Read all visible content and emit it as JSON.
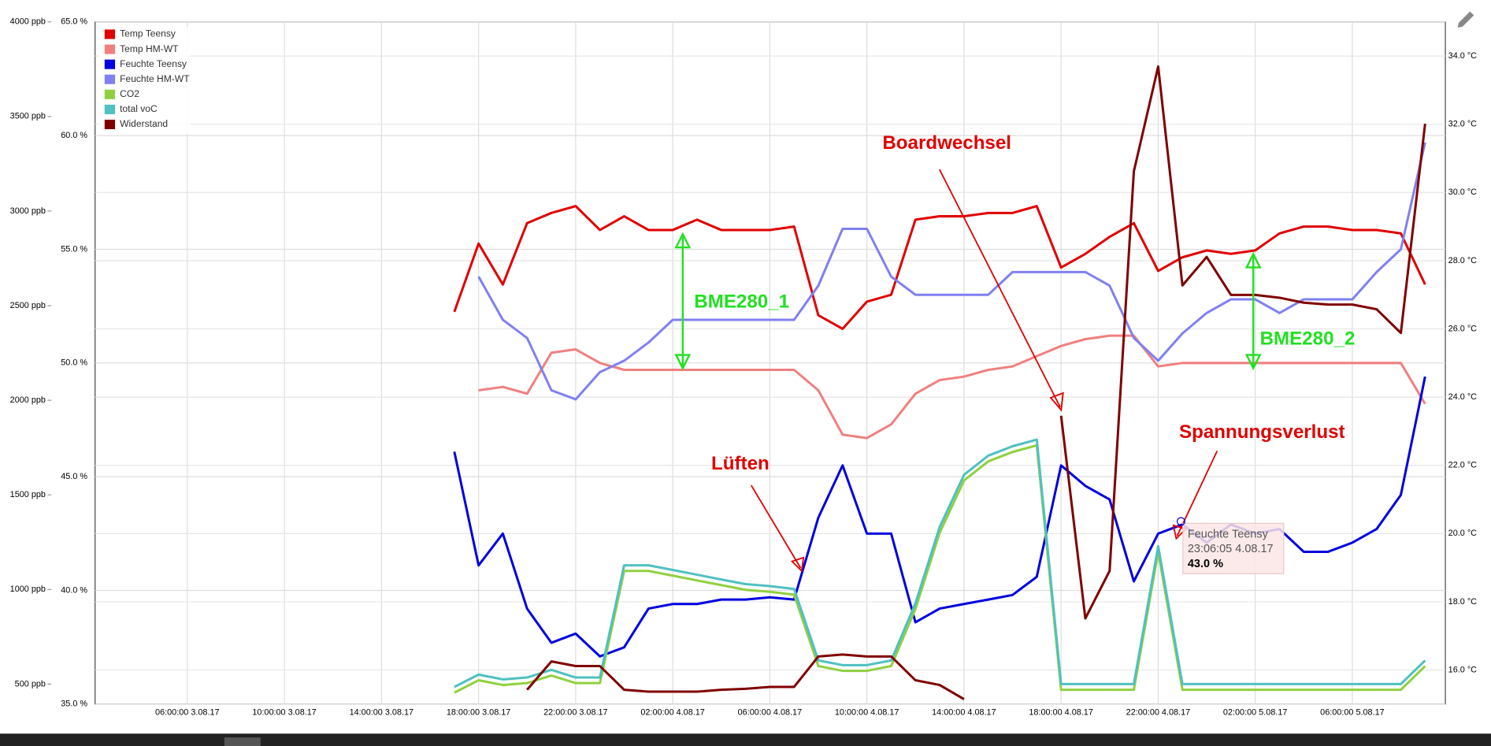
{
  "chart_data": {
    "type": "line",
    "x": [
      "17:00:00 3.08.17",
      "18:00:00 3.08.17",
      "19:00:00 3.08.17",
      "20:00:00 3.08.17",
      "21:00:00 3.08.17",
      "22:00:00 3.08.17",
      "23:00:00 3.08.17",
      "00:00:00 4.08.17",
      "01:00:00 4.08.17",
      "02:00:00 4.08.17",
      "03:00:00 4.08.17",
      "04:00:00 4.08.17",
      "05:00:00 4.08.17",
      "06:00:00 4.08.17",
      "07:00:00 4.08.17",
      "08:00:00 4.08.17",
      "09:00:00 4.08.17",
      "10:00:00 4.08.17",
      "11:00:00 4.08.17",
      "12:00:00 4.08.17",
      "13:00:00 4.08.17",
      "14:00:00 4.08.17",
      "15:00:00 4.08.17",
      "16:00:00 4.08.17",
      "17:00:00 4.08.17",
      "18:00:00 4.08.17",
      "19:00:00 4.08.17",
      "20:00:00 4.08.17",
      "21:00:00 4.08.17",
      "22:00:00 4.08.17",
      "23:00:00 4.08.17",
      "00:00:00 5.08.17",
      "01:00:00 5.08.17",
      "02:00:00 5.08.17",
      "03:00:00 5.08.17",
      "04:00:00 5.08.17",
      "05:00:00 5.08.17",
      "06:00:00 5.08.17",
      "07:00:00 5.08.17",
      "08:00:00 5.08.17",
      "09:00:00 5.08.17"
    ],
    "xlim": [
      "02:12:00 3.08.17",
      "09:50:00 5.08.17"
    ],
    "xticks": [
      "06:00:00 3.08.17",
      "10:00:00 3.08.17",
      "14:00:00 3.08.17",
      "18:00:00 3.08.17",
      "22:00:00 3.08.17",
      "02:00:00 4.08.17",
      "06:00:00 4.08.17",
      "10:00:00 4.08.17",
      "14:00:00 4.08.17",
      "18:00:00 4.08.17",
      "22:00:00 4.08.17",
      "02:00:00 5.08.17",
      "06:00:00 5.08.17"
    ],
    "ylim": [
      394,
      4000
    ],
    "yticks": [
      {
        "value": 500,
        "label": "500 ppb"
      },
      {
        "value": 1000,
        "label": "1000 ppb"
      },
      {
        "value": 1500,
        "label": "1500 ppb"
      },
      {
        "value": 2000,
        "label": "2000 ppb"
      },
      {
        "value": 2500,
        "label": "2500 ppb"
      },
      {
        "value": 3000,
        "label": "3000 ppb"
      },
      {
        "value": 3500,
        "label": "3500 ppb"
      },
      {
        "value": 4000,
        "label": "4000 ppb"
      }
    ],
    "y3lim": [
      35,
      65
    ],
    "y3ticks": [
      {
        "value": 35,
        "label": "35.0 %"
      },
      {
        "value": 40,
        "label": "40.0 %"
      },
      {
        "value": 45,
        "label": "45.0 %"
      },
      {
        "value": 50,
        "label": "50.0 %"
      },
      {
        "value": 55,
        "label": "55.0 %"
      },
      {
        "value": 60,
        "label": "60.0 %"
      },
      {
        "value": 65,
        "label": "65.0 %"
      }
    ],
    "y2lim": [
      15,
      35
    ],
    "y2ticks": [
      {
        "value": 16,
        "label": "16.0 °C"
      },
      {
        "value": 18,
        "label": "18.0 °C"
      },
      {
        "value": 20,
        "label": "20.0 °C"
      },
      {
        "value": 22,
        "label": "22.0 °C"
      },
      {
        "value": 24,
        "label": "24.0 °C"
      },
      {
        "value": 26,
        "label": "26.0 °C"
      },
      {
        "value": 28,
        "label": "28.0 °C"
      },
      {
        "value": 30,
        "label": "30.0 °C"
      },
      {
        "value": 32,
        "label": "32.0 °C"
      },
      {
        "value": 34,
        "label": "34.0 °C"
      }
    ],
    "grid": true,
    "legend": "top-left",
    "series": [
      {
        "name": "Temp Teensy",
        "color": "#e00000",
        "axis": "y2",
        "values": [
          26.5,
          28.5,
          27.3,
          29.1,
          29.4,
          29.6,
          28.9,
          29.3,
          28.9,
          28.9,
          29.2,
          28.9,
          28.9,
          28.9,
          29.0,
          26.4,
          26.0,
          26.8,
          27.0,
          29.2,
          29.3,
          29.3,
          29.4,
          29.4,
          29.6,
          27.8,
          28.2,
          28.7,
          29.1,
          27.7,
          28.1,
          28.3,
          28.2,
          28.3,
          28.8,
          29.0,
          29.0,
          28.9,
          28.9,
          28.8,
          27.3
        ]
      },
      {
        "name": "Temp HM-WT",
        "color": "#f08080",
        "axis": "y2",
        "values": [
          null,
          24.2,
          24.3,
          24.1,
          25.3,
          25.4,
          25.0,
          24.8,
          24.8,
          24.8,
          24.8,
          24.8,
          24.8,
          24.8,
          24.8,
          24.2,
          22.9,
          22.8,
          23.2,
          24.1,
          24.5,
          24.6,
          24.8,
          24.9,
          25.2,
          25.5,
          25.7,
          25.8,
          25.8,
          24.9,
          25.0,
          25.0,
          25.0,
          25.0,
          25.0,
          25.0,
          25.0,
          25.0,
          25.0,
          25.0,
          23.8
        ]
      },
      {
        "name": "Feuchte Teensy",
        "color": "#0000e0",
        "axis": "y3",
        "values": [
          46.1,
          41.1,
          42.5,
          39.2,
          37.7,
          38.1,
          37.1,
          37.5,
          39.2,
          39.4,
          39.4,
          39.6,
          39.6,
          39.7,
          39.6,
          43.2,
          45.5,
          42.5,
          42.5,
          38.6,
          39.2,
          39.4,
          39.6,
          39.8,
          40.6,
          45.5,
          44.6,
          44.0,
          40.4,
          42.5,
          42.9,
          42.1,
          42.9,
          42.5,
          42.7,
          41.7,
          41.7,
          42.1,
          42.7,
          44.2,
          49.4
        ]
      },
      {
        "name": "Feuchte HM-WT",
        "color": "#8080f0",
        "axis": "y3",
        "values": [
          null,
          53.8,
          51.9,
          51.1,
          48.8,
          48.4,
          49.6,
          50.1,
          50.9,
          51.9,
          51.9,
          51.9,
          51.9,
          51.9,
          51.9,
          53.4,
          55.9,
          55.9,
          53.8,
          53.0,
          53.0,
          53.0,
          53.0,
          54.0,
          54.0,
          54.0,
          54.0,
          53.4,
          51.1,
          50.1,
          51.3,
          52.2,
          52.8,
          52.8,
          52.2,
          52.8,
          52.8,
          52.8,
          54.0,
          55.0,
          59.7
        ]
      },
      {
        "name": "CO2",
        "color": "#90d040",
        "axis": "y",
        "values": [
          455,
          520,
          495,
          505,
          545,
          505,
          505,
          1098,
          1098,
          1073,
          1048,
          1023,
          998,
          988,
          973,
          595,
          570,
          570,
          595,
          897,
          1300,
          1576,
          1677,
          1727,
          1762,
          470,
          470,
          470,
          470,
          1199,
          470,
          470,
          470,
          470,
          470,
          470,
          470,
          470,
          470,
          470,
          595
        ]
      },
      {
        "name": "total voC",
        "color": "#50c0c0",
        "axis": "y",
        "values": [
          485,
          550,
          525,
          535,
          575,
          535,
          535,
          1128,
          1128,
          1103,
          1078,
          1053,
          1028,
          1018,
          1003,
          625,
          600,
          600,
          625,
          927,
          1330,
          1606,
          1707,
          1757,
          1792,
          500,
          500,
          500,
          500,
          1229,
          500,
          500,
          500,
          500,
          500,
          500,
          500,
          500,
          500,
          500,
          625
        ]
      },
      {
        "name": "Widerstand",
        "color": "#800000",
        "axis": "y",
        "values": [
          null,
          null,
          null,
          470,
          620,
          595,
          595,
          470,
          460,
          460,
          460,
          470,
          475,
          485,
          485,
          646,
          656,
          646,
          646,
          520,
          495,
          420,
          null,
          null,
          null,
          1918,
          847,
          1098,
          3210,
          3764,
          2607,
          2758,
          2557,
          2557,
          2542,
          2516,
          2506,
          2506,
          2481,
          2356,
          3462
        ]
      }
    ],
    "annotations": [
      "Boardwechsel",
      "Lüften",
      "Spannungsverlust",
      "BME280_1",
      "BME280_2"
    ],
    "tooltip": {
      "series": "Feuchte Teensy",
      "time": "23:06:05 4.08.17",
      "value": "43.0 %"
    }
  }
}
